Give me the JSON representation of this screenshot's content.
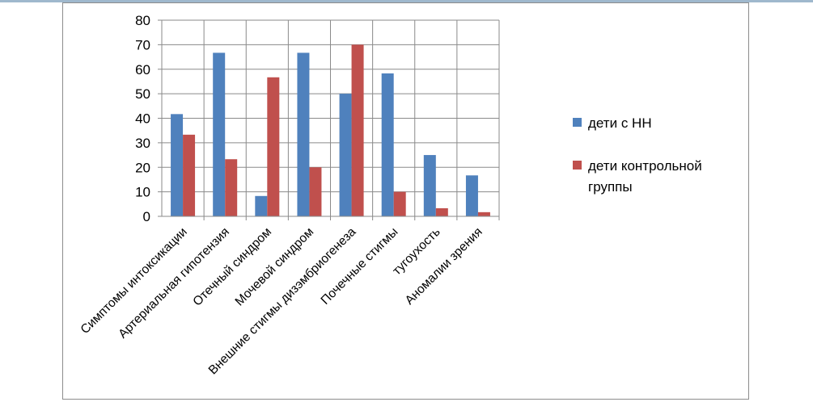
{
  "chart_data": {
    "type": "bar",
    "categories": [
      "Симптомы интоксикации",
      "Артериальная гипотензия",
      "Отечный синдром",
      "Мочевой синдром",
      "Внешние стигмы дизэмбриогенеза",
      "Почечные стигмы",
      "тугоухость",
      "Аномалии зрения"
    ],
    "series": [
      {
        "name": "дети с НН",
        "color": "#4f81bd",
        "values": [
          41.7,
          66.7,
          8.3,
          66.7,
          50,
          58.3,
          25,
          16.7
        ]
      },
      {
        "name": "дети контрольной группы",
        "color": "#c0504d",
        "values": [
          33.3,
          23.3,
          56.7,
          20,
          70,
          10,
          3.3,
          1.7
        ]
      }
    ],
    "ylim": [
      0,
      80
    ],
    "yticks": [
      "0",
      "10",
      "20",
      "30",
      "40",
      "50",
      "60",
      "70",
      "80"
    ],
    "grid": true,
    "legend_position": "right",
    "legend_lines": [
      [
        "дети с НН"
      ],
      [
        "дети контрольной",
        "группы"
      ]
    ]
  }
}
